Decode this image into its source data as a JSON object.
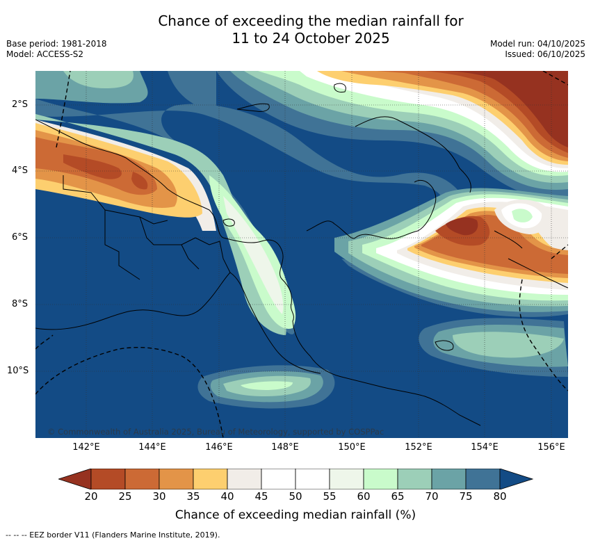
{
  "title": {
    "line1": "Chance of exceeding the median rainfall for",
    "line2": "11 to 24 October 2025"
  },
  "meta": {
    "base_period": "Base period: 1981-2018",
    "model": "Model: ACCESS-S2",
    "model_run": "Model run: 04/10/2025",
    "issued": "Issued: 06/10/2025"
  },
  "map": {
    "latitude_labels": [
      "2°S",
      "4°S",
      "6°S",
      "8°S",
      "10°S"
    ],
    "longitude_labels": [
      "142°E",
      "144°E",
      "146°E",
      "148°E",
      "150°E",
      "152°E",
      "154°E",
      "156°E"
    ],
    "copyright": "© Commonwealth of Australia 2025, Bureau of Meteorology, supported by COSPPac"
  },
  "colorbar": {
    "labels": [
      "20",
      "25",
      "30",
      "35",
      "40",
      "45",
      "50",
      "55",
      "60",
      "65",
      "70",
      "75",
      "80"
    ],
    "title": "Chance of exceeding median rainfall (%)",
    "colors": [
      "#963220",
      "#b44b26",
      "#cc6a35",
      "#e39448",
      "#fdcf6f",
      "#f1ede8",
      "#ffffff",
      "#ffffff",
      "#eef6ea",
      "#c9fbcb",
      "#9ccfb8",
      "#6ba3a6",
      "#407396",
      "#134b85"
    ]
  },
  "footer": {
    "legend": "--  --  -- EEZ border V11 (Flanders Marine Institute, 2019)."
  }
}
